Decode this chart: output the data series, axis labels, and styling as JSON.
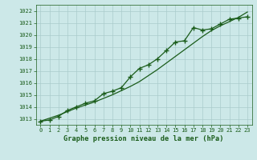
{
  "line_marked": [
    1012.8,
    1012.9,
    1013.2,
    1013.7,
    1014.0,
    1014.3,
    1014.5,
    1015.1,
    1015.3,
    1015.6,
    1016.5,
    1017.2,
    1017.5,
    1018.0,
    1018.7,
    1019.4,
    1019.5,
    1020.6,
    1020.4,
    1020.5,
    1020.9,
    1021.3,
    1021.4,
    1021.5
  ],
  "line_smooth": [
    1012.8,
    1013.05,
    1013.3,
    1013.6,
    1013.9,
    1014.15,
    1014.4,
    1014.7,
    1015.0,
    1015.35,
    1015.7,
    1016.1,
    1016.6,
    1017.1,
    1017.65,
    1018.2,
    1018.75,
    1019.3,
    1019.85,
    1020.35,
    1020.75,
    1021.1,
    1021.45,
    1021.9
  ],
  "xlabel": "Graphe pression niveau de la mer (hPa)",
  "ylim_min": 1012.5,
  "ylim_max": 1022.5,
  "xlim_min": -0.5,
  "xlim_max": 23.5,
  "yticks": [
    1013,
    1014,
    1015,
    1016,
    1017,
    1018,
    1019,
    1020,
    1021,
    1022
  ],
  "xticks": [
    0,
    1,
    2,
    3,
    4,
    5,
    6,
    7,
    8,
    9,
    10,
    11,
    12,
    13,
    14,
    15,
    16,
    17,
    18,
    19,
    20,
    21,
    22,
    23
  ],
  "line_color": "#1a5c1a",
  "bg_color": "#cce8e8",
  "grid_color": "#aacccc",
  "tick_color": "#1a5c1a",
  "marker": "+",
  "marker_size": 4.5,
  "marker_lw": 1.0,
  "line_width": 0.9
}
